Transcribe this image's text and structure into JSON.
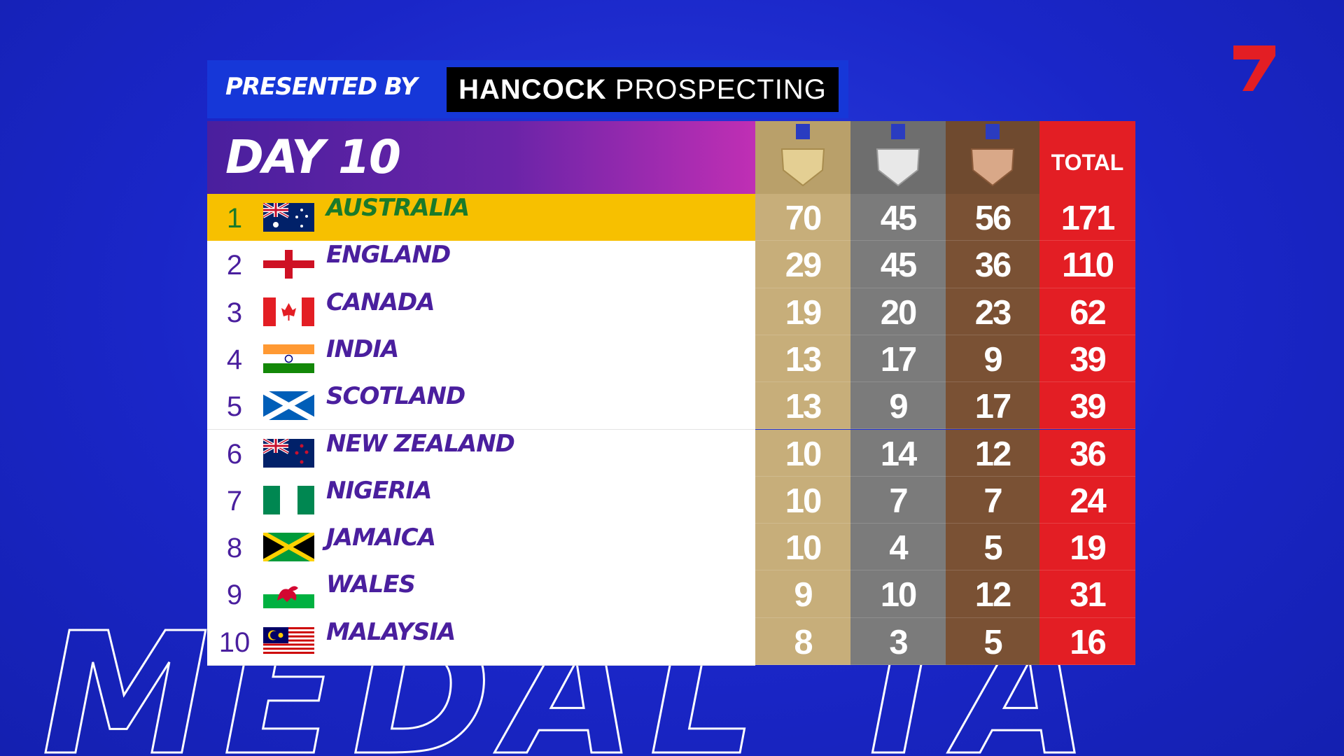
{
  "header": {
    "presented_by": "PRESENTED BY",
    "sponsor_bold": "HANCOCK",
    "sponsor_light": "PROSPECTING"
  },
  "watermark": "MEDAL TA",
  "table": {
    "title": "DAY 10",
    "total_header": "TOTAL",
    "rows": [
      [
        1,
        "AUSTRALIA",
        70,
        45,
        56,
        171
      ],
      [
        2,
        "ENGLAND",
        29,
        45,
        36,
        110
      ],
      [
        3,
        "CANADA",
        19,
        20,
        23,
        62
      ],
      [
        4,
        "INDIA",
        13,
        17,
        9,
        39
      ],
      [
        5,
        "SCOTLAND",
        13,
        9,
        17,
        39
      ],
      [
        6,
        "NEW ZEALAND",
        10,
        14,
        12,
        36
      ],
      [
        7,
        "NIGERIA",
        10,
        7,
        7,
        24
      ],
      [
        8,
        "JAMAICA",
        10,
        4,
        5,
        19
      ],
      [
        9,
        "WALES",
        9,
        10,
        12,
        31
      ],
      [
        10,
        "MALAYSIA",
        8,
        3,
        5,
        16
      ]
    ]
  }
}
